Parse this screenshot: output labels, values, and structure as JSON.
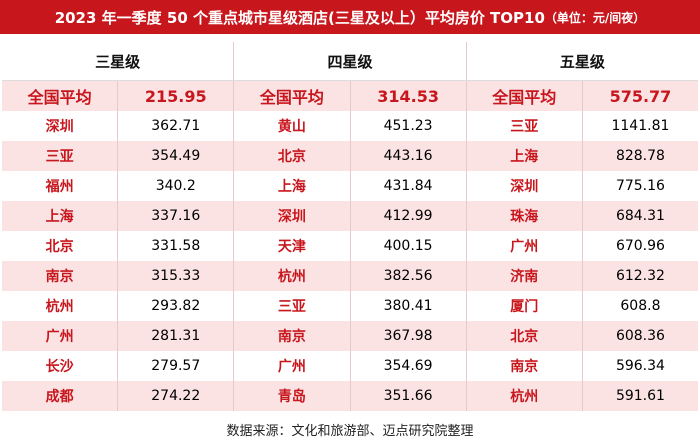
{
  "header": {
    "title": "2023 年一季度 50 个重点城市星级酒店(三星及以上）平均房价 TOP10",
    "unit": "（单位：元/间夜）"
  },
  "table": {
    "groups": [
      {
        "name": "三星级",
        "average_label": "全国平均",
        "average": "215.95",
        "rows": [
          [
            "深圳",
            "362.71"
          ],
          [
            "三亚",
            "354.49"
          ],
          [
            "福州",
            "340.2"
          ],
          [
            "上海",
            "337.16"
          ],
          [
            "北京",
            "331.58"
          ],
          [
            "南京",
            "315.33"
          ],
          [
            "杭州",
            "293.82"
          ],
          [
            "广州",
            "281.31"
          ],
          [
            "长沙",
            "279.57"
          ],
          [
            "成都",
            "274.22"
          ]
        ]
      },
      {
        "name": "四星级",
        "average_label": "全国平均",
        "average": "314.53",
        "rows": [
          [
            "黄山",
            "451.23"
          ],
          [
            "北京",
            "443.16"
          ],
          [
            "上海",
            "431.84"
          ],
          [
            "深圳",
            "412.99"
          ],
          [
            "天津",
            "400.15"
          ],
          [
            "杭州",
            "382.56"
          ],
          [
            "三亚",
            "380.41"
          ],
          [
            "南京",
            "367.98"
          ],
          [
            "广州",
            "354.69"
          ],
          [
            "青岛",
            "351.66"
          ]
        ]
      },
      {
        "name": "五星级",
        "average_label": "全国平均",
        "average": "575.77",
        "rows": [
          [
            "三亚",
            "1141.81"
          ],
          [
            "上海",
            "828.78"
          ],
          [
            "深圳",
            "775.16"
          ],
          [
            "珠海",
            "684.31"
          ],
          [
            "广州",
            "670.96"
          ],
          [
            "济南",
            "612.32"
          ],
          [
            "厦门",
            "608.8"
          ],
          [
            "北京",
            "608.36"
          ],
          [
            "南京",
            "596.34"
          ],
          [
            "杭州",
            "591.61"
          ]
        ]
      }
    ]
  },
  "footer": {
    "source": "数据来源：文化和旅游部、迈点研究院整理"
  }
}
